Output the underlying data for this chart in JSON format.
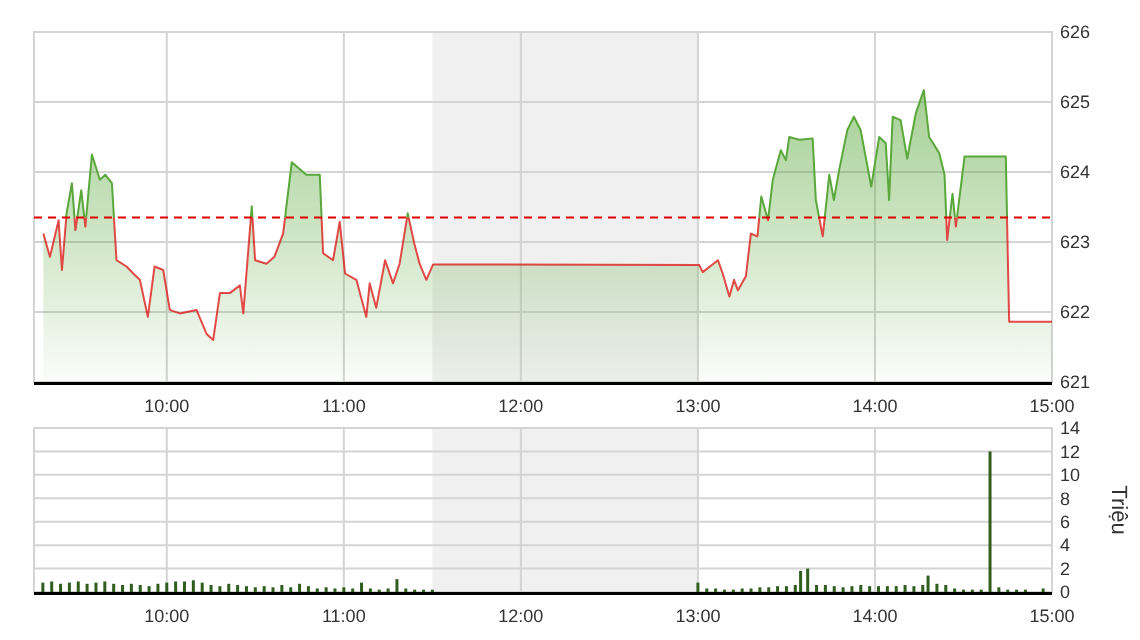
{
  "chart_data": [
    {
      "type": "area",
      "xlim": [
        9.25,
        15
      ],
      "ylim": [
        621,
        626
      ],
      "yticks": [
        621,
        622,
        623,
        624,
        625,
        626
      ],
      "xticks": [
        {
          "value": 10,
          "label": "10:00"
        },
        {
          "value": 11,
          "label": "11:00"
        },
        {
          "value": 12,
          "label": "12:00"
        },
        {
          "value": 13,
          "label": "13:00"
        },
        {
          "value": 14,
          "label": "14:00"
        },
        {
          "value": 15,
          "label": "15:00"
        }
      ],
      "grid": true,
      "bands": [
        {
          "axis": "x",
          "from": 11.5,
          "to": 13,
          "color": "#f0f0f0"
        }
      ],
      "ref_lines": [
        {
          "axis": "y",
          "value": 623.35,
          "color": "#dd0000",
          "line_style": "dashed"
        }
      ],
      "series": [
        {
          "color": "#5aa83c",
          "x": [
            9.303,
            9.34,
            9.389,
            9.408,
            9.434,
            9.464,
            9.484,
            9.517,
            9.54,
            9.577,
            9.622,
            9.653,
            9.69,
            9.716,
            9.773,
            9.811,
            9.848,
            9.893,
            9.931,
            9.98,
            10.017,
            10.074,
            10.168,
            10.224,
            10.262,
            10.3,
            10.356,
            10.413,
            10.432,
            10.48,
            10.499,
            10.563,
            10.608,
            10.657,
            10.706,
            10.788,
            10.864,
            10.883,
            10.939,
            10.977,
            11.007,
            11.071,
            11.127,
            11.146,
            11.183,
            11.233,
            11.278,
            11.315,
            11.361,
            11.398,
            11.428,
            11.466,
            11.504,
            13.008,
            13.027,
            13.113,
            13.14,
            13.178,
            13.204,
            13.226,
            13.271,
            13.299,
            13.336,
            13.358,
            13.396,
            13.423,
            13.468,
            13.497,
            13.516,
            13.573,
            13.648,
            13.666,
            13.705,
            13.742,
            13.768,
            13.798,
            13.844,
            13.881,
            13.919,
            13.979,
            14.024,
            14.061,
            14.08,
            14.1,
            14.145,
            14.182,
            14.231,
            14.276,
            14.306,
            14.363,
            14.393,
            14.408,
            14.438,
            14.457,
            14.506,
            14.739,
            14.758,
            15
          ],
          "values": [
            623.12,
            622.79,
            623.31,
            622.6,
            623.41,
            623.84,
            623.17,
            623.74,
            623.22,
            624.25,
            623.89,
            623.96,
            623.84,
            622.74,
            622.65,
            622.55,
            622.46,
            621.93,
            622.65,
            622.6,
            622.03,
            621.98,
            622.03,
            621.69,
            621.6,
            622.27,
            622.27,
            622.38,
            621.98,
            623.51,
            622.74,
            622.69,
            622.79,
            623.12,
            624.14,
            623.96,
            623.96,
            622.84,
            622.74,
            623.29,
            622.55,
            622.46,
            621.93,
            622.41,
            622.06,
            622.74,
            622.41,
            622.69,
            623.41,
            622.98,
            622.69,
            622.46,
            622.68,
            622.67,
            622.57,
            622.74,
            622.55,
            622.22,
            622.46,
            622.31,
            622.51,
            623.12,
            623.08,
            623.65,
            623.31,
            623.89,
            624.31,
            624.17,
            624.5,
            624.46,
            624.48,
            623.6,
            623.08,
            623.96,
            623.6,
            624.03,
            624.6,
            624.79,
            624.6,
            623.79,
            624.5,
            624.41,
            623.6,
            624.79,
            624.74,
            624.19,
            624.84,
            625.17,
            624.5,
            624.27,
            623.96,
            623.03,
            623.69,
            623.22,
            624.22,
            624.22,
            621.86,
            621.86
          ]
        }
      ]
    },
    {
      "type": "bar",
      "xlim": [
        9.25,
        15
      ],
      "ylim": [
        0,
        14
      ],
      "yticks": [
        0,
        2,
        4,
        6,
        8,
        10,
        12,
        14
      ],
      "xticks": [
        {
          "value": 10,
          "label": "10:00"
        },
        {
          "value": 11,
          "label": "11:00"
        },
        {
          "value": 12,
          "label": "12:00"
        },
        {
          "value": 13,
          "label": "13:00"
        },
        {
          "value": 14,
          "label": "14:00"
        },
        {
          "value": 15,
          "label": "15:00"
        }
      ],
      "grid": true,
      "y2label": "Triệu",
      "bands": [
        {
          "axis": "x",
          "from": 11.5,
          "to": 13,
          "color": "#f0f0f0"
        }
      ],
      "series": [
        {
          "color": "#2f5e1e",
          "x": [
            9.3,
            9.35,
            9.4,
            9.45,
            9.5,
            9.55,
            9.6,
            9.65,
            9.7,
            9.75,
            9.8,
            9.85,
            9.9,
            9.95,
            10,
            10.05,
            10.1,
            10.15,
            10.2,
            10.25,
            10.3,
            10.35,
            10.4,
            10.45,
            10.5,
            10.55,
            10.6,
            10.65,
            10.7,
            10.75,
            10.8,
            10.85,
            10.9,
            10.95,
            11,
            11.05,
            11.1,
            11.15,
            11.2,
            11.25,
            11.3,
            11.35,
            11.4,
            11.45,
            11.5,
            13,
            13.05,
            13.1,
            13.15,
            13.2,
            13.25,
            13.3,
            13.35,
            13.4,
            13.45,
            13.5,
            13.55,
            13.58,
            13.62,
            13.67,
            13.72,
            13.77,
            13.82,
            13.87,
            13.92,
            13.97,
            14.02,
            14.07,
            14.12,
            14.17,
            14.22,
            14.27,
            14.3,
            14.35,
            14.4,
            14.45,
            14.5,
            14.55,
            14.6,
            14.65,
            14.7,
            14.75,
            14.8,
            14.85,
            14.95
          ],
          "values": [
            0.8,
            0.9,
            0.7,
            0.8,
            0.9,
            0.7,
            0.8,
            0.9,
            0.7,
            0.6,
            0.7,
            0.6,
            0.5,
            0.7,
            0.8,
            0.9,
            0.9,
            1.0,
            0.8,
            0.6,
            0.5,
            0.7,
            0.6,
            0.5,
            0.4,
            0.5,
            0.4,
            0.6,
            0.4,
            0.7,
            0.5,
            0.3,
            0.4,
            0.3,
            0.4,
            0.3,
            0.8,
            0.3,
            0.2,
            0.3,
            1.1,
            0.3,
            0.2,
            0.2,
            0.2,
            0.8,
            0.3,
            0.3,
            0.2,
            0.2,
            0.3,
            0.3,
            0.4,
            0.4,
            0.5,
            0.5,
            0.6,
            1.8,
            2.0,
            0.6,
            0.6,
            0.5,
            0.4,
            0.5,
            0.6,
            0.5,
            0.5,
            0.5,
            0.5,
            0.6,
            0.5,
            0.6,
            1.4,
            0.7,
            0.6,
            0.3,
            0.2,
            0.2,
            0.2,
            12.0,
            0.4,
            0.2,
            0.2,
            0.2,
            0.3
          ]
        }
      ]
    }
  ]
}
